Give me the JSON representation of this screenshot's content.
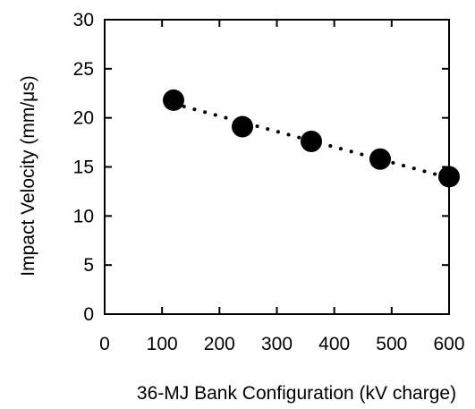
{
  "chart_data": {
    "type": "scatter",
    "title": "",
    "xlabel": "36-MJ Bank Configuration (kV charge)",
    "ylabel": "Impact Velocity (mm/μs)",
    "xlim": [
      0,
      600
    ],
    "ylim": [
      0,
      30
    ],
    "x_ticks": [
      0,
      100,
      200,
      300,
      400,
      500,
      600
    ],
    "y_ticks": [
      0,
      5,
      10,
      15,
      20,
      25,
      30
    ],
    "grid": false,
    "legend": "none",
    "series": [
      {
        "x": [
          120,
          240,
          360,
          480,
          600
        ],
        "y": [
          21.8,
          19.1,
          17.6,
          15.8,
          14.0
        ],
        "marker": "filled-circle",
        "color": "#000000"
      }
    ],
    "trendline": {
      "style": "dotted",
      "color": "#000000"
    }
  }
}
